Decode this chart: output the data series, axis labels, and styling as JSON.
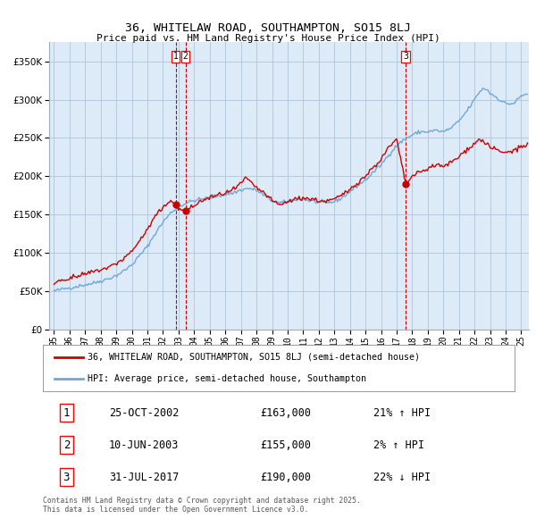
{
  "title": "36, WHITELAW ROAD, SOUTHAMPTON, SO15 8LJ",
  "subtitle": "Price paid vs. HM Land Registry's House Price Index (HPI)",
  "legend_line1": "36, WHITELAW ROAD, SOUTHAMPTON, SO15 8LJ (semi-detached house)",
  "legend_line2": "HPI: Average price, semi-detached house, Southampton",
  "footer": "Contains HM Land Registry data © Crown copyright and database right 2025.\nThis data is licensed under the Open Government Licence v3.0.",
  "transactions": [
    {
      "num": 1,
      "date": "25-OCT-2002",
      "price": 163000,
      "hpi_change": "21% ↑ HPI",
      "x": 2002.81
    },
    {
      "num": 2,
      "date": "10-JUN-2003",
      "price": 155000,
      "hpi_change": "2% ↑ HPI",
      "x": 2003.44
    },
    {
      "num": 3,
      "date": "31-JUL-2017",
      "price": 190000,
      "hpi_change": "22% ↓ HPI",
      "x": 2017.58
    }
  ],
  "hpi_color": "#6fa8d8",
  "price_color": "#cc0000",
  "vline_color": "#cc0000",
  "background_color": "#ffffff",
  "plot_bg_color": "#ddeaf8",
  "grid_color": "#b0c4d8",
  "ylim": [
    0,
    375000
  ],
  "xlim": [
    1994.7,
    2025.5
  ],
  "yticks": [
    0,
    50000,
    100000,
    150000,
    200000,
    250000,
    300000,
    350000
  ],
  "xticks": [
    1995,
    1996,
    1997,
    1998,
    1999,
    2000,
    2001,
    2002,
    2003,
    2004,
    2005,
    2006,
    2007,
    2008,
    2009,
    2010,
    2011,
    2012,
    2013,
    2014,
    2015,
    2016,
    2017,
    2018,
    2019,
    2020,
    2021,
    2022,
    2023,
    2024,
    2025
  ]
}
